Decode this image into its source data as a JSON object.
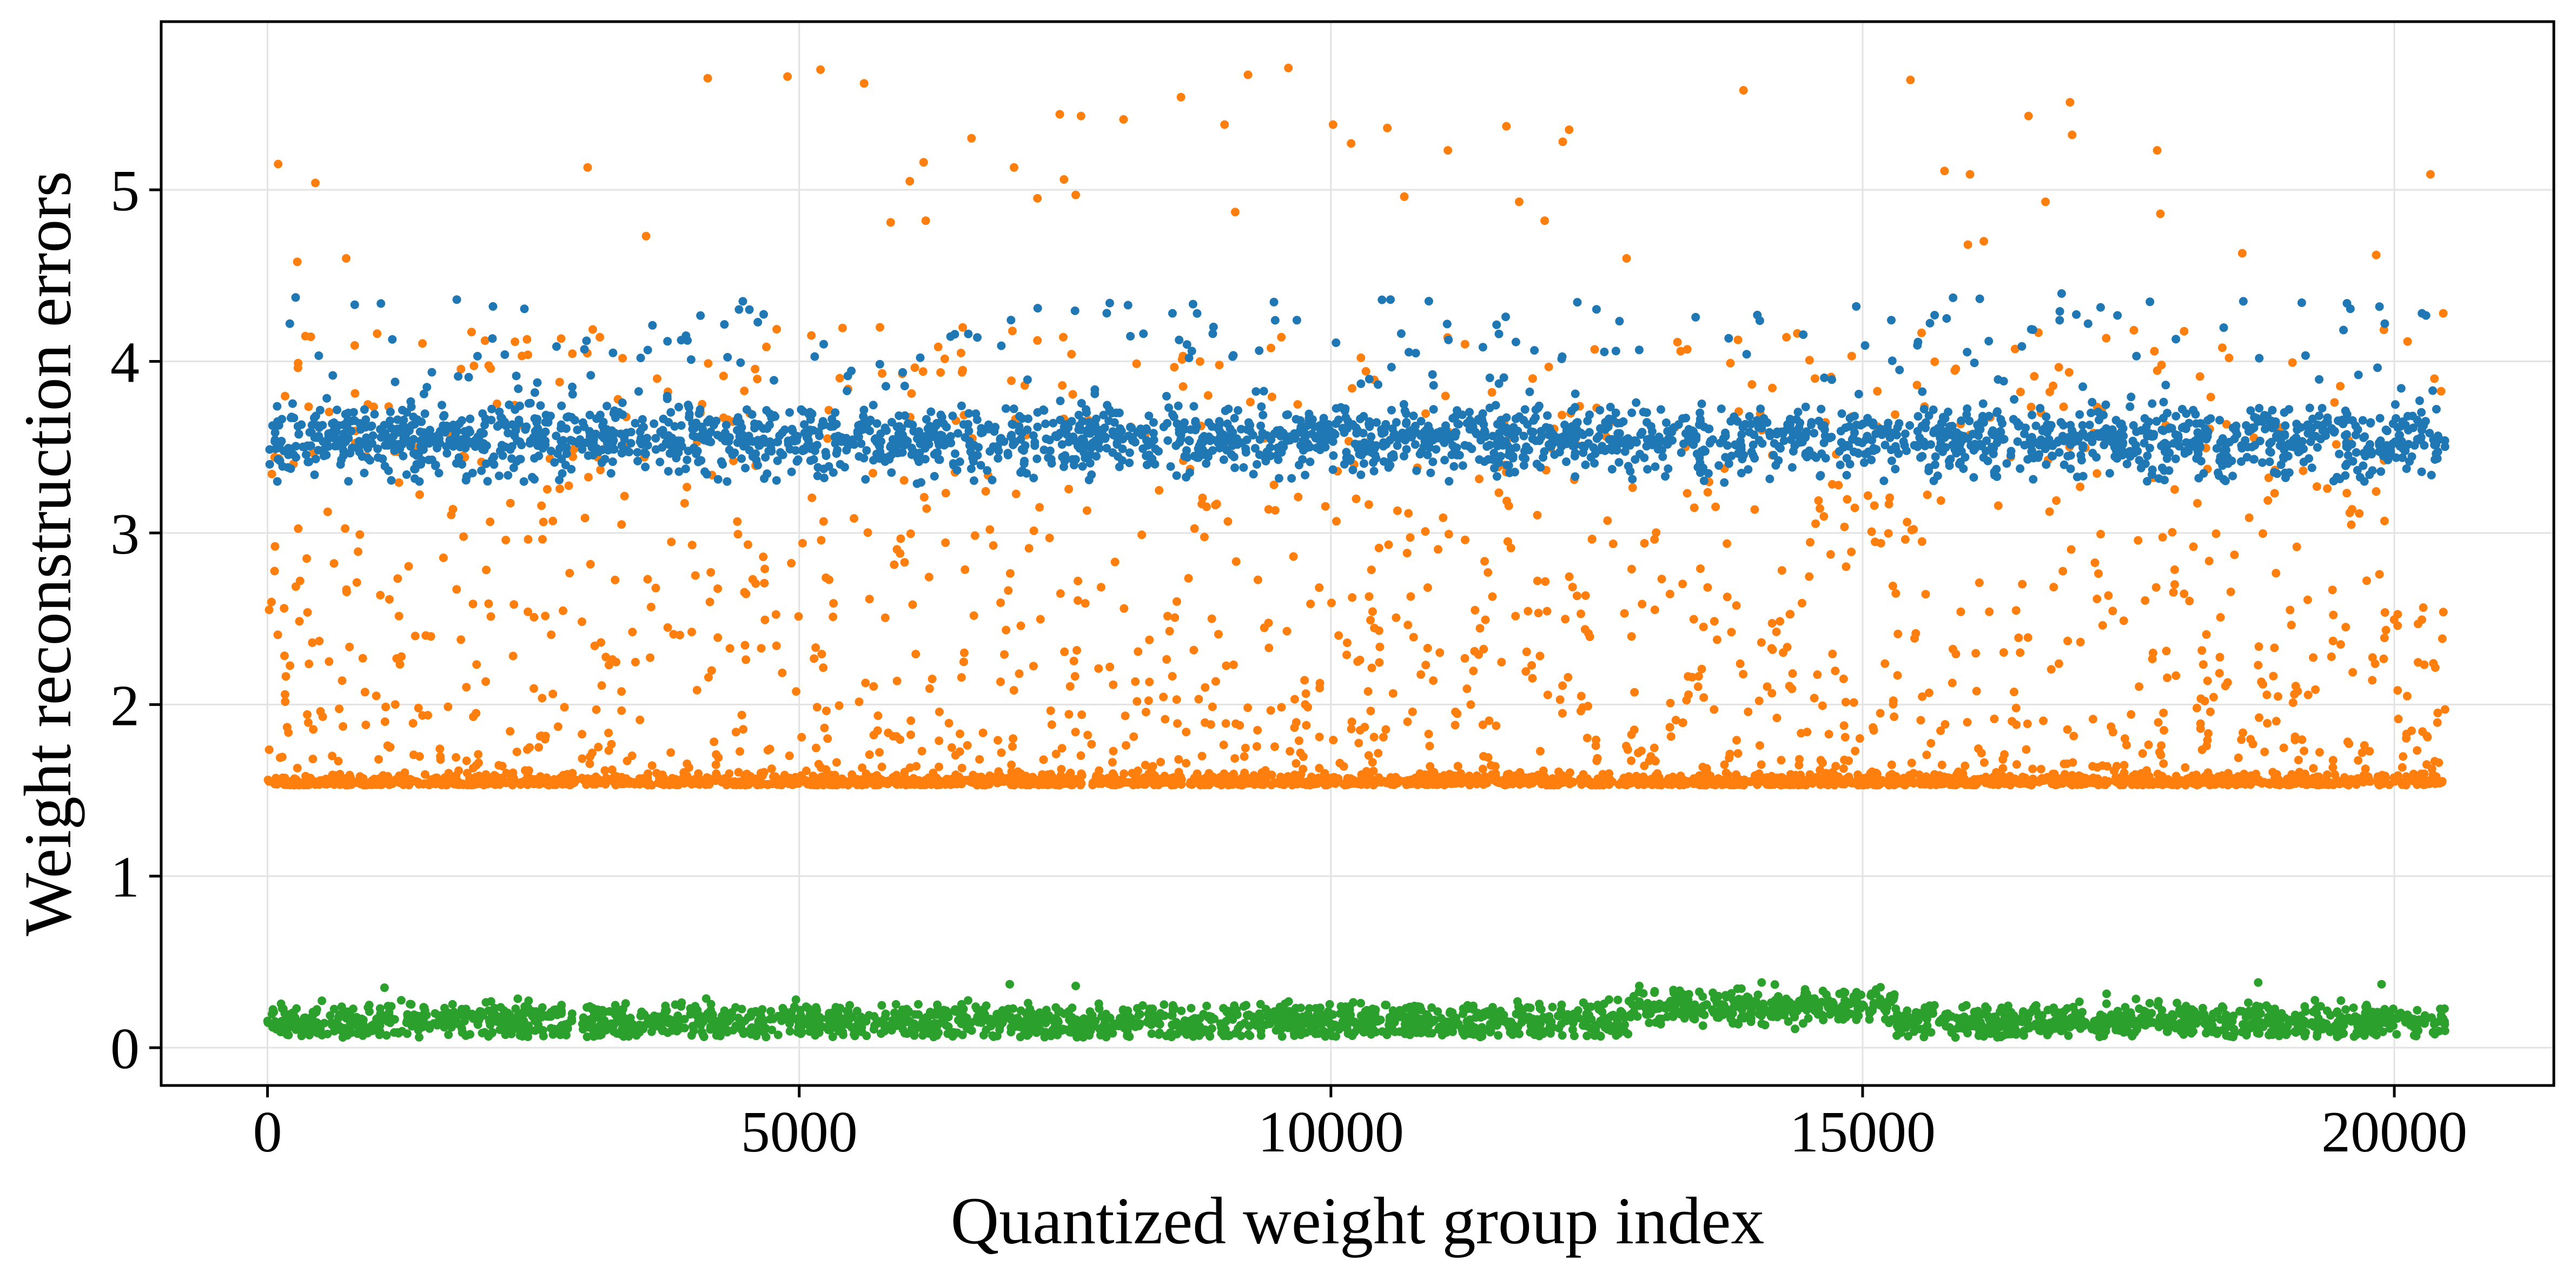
{
  "chart_data": {
    "type": "scatter",
    "title": "",
    "xlabel": "Quantized weight group index",
    "ylabel": "Weight reconstruction errors",
    "xlim": [
      -1000,
      21500
    ],
    "ylim": [
      -0.22,
      5.98
    ],
    "grid": true,
    "x_ticks": [
      {
        "value": 0,
        "label": "0"
      },
      {
        "value": 5000,
        "label": "5000"
      },
      {
        "value": 10000,
        "label": "10000"
      },
      {
        "value": 15000,
        "label": "15000"
      },
      {
        "value": 20000,
        "label": "20000"
      }
    ],
    "y_ticks": [
      {
        "value": 0,
        "label": "0"
      },
      {
        "value": 1,
        "label": "1"
      },
      {
        "value": 2,
        "label": "2"
      },
      {
        "value": 3,
        "label": "3"
      },
      {
        "value": 4,
        "label": "4"
      },
      {
        "value": 5,
        "label": "5"
      }
    ],
    "x_domain": [
      0,
      20479
    ],
    "marker_radius": 8,
    "series": [
      {
        "color": "#1f77b4",
        "band_center": 3.55,
        "band_spread": 0.09,
        "outlier_range": [
          3.3,
          4.4
        ],
        "outlier_fraction": 0.16,
        "count": 2600,
        "outliers": [
          [
            210,
            4.22
          ],
          [
            820,
            4.33
          ],
          [
            1780,
            4.36
          ],
          [
            2120,
            4.32
          ],
          [
            3000,
            4.12
          ],
          [
            3620,
            4.21
          ],
          [
            4470,
            4.35
          ],
          [
            5230,
            4.1
          ],
          [
            6590,
            4.16
          ],
          [
            7920,
            4.34
          ],
          [
            8510,
            4.28
          ],
          [
            9680,
            4.24
          ],
          [
            10560,
            4.36
          ],
          [
            11580,
            4.16
          ],
          [
            12680,
            4.06
          ],
          [
            14010,
            4.27
          ],
          [
            14940,
            4.32
          ],
          [
            15790,
            4.25
          ],
          [
            17120,
            4.22
          ],
          [
            18580,
            4.35
          ],
          [
            19910,
            4.22
          ],
          [
            20260,
            4.28
          ]
        ]
      },
      {
        "color": "#ff7f0e",
        "band_center": 1.53,
        "band_spread": 0.03,
        "upper_max": 4.2,
        "outlier_fraction": 0.45,
        "count": 3600,
        "outliers": [
          [
            100,
            5.15
          ],
          [
            450,
            5.04
          ],
          [
            280,
            4.58
          ],
          [
            740,
            4.6
          ],
          [
            3010,
            5.13
          ],
          [
            3560,
            4.73
          ],
          [
            4140,
            5.65
          ],
          [
            4890,
            5.66
          ],
          [
            5200,
            5.7
          ],
          [
            5610,
            5.62
          ],
          [
            6040,
            5.05
          ],
          [
            6170,
            5.16
          ],
          [
            5860,
            4.81
          ],
          [
            6190,
            4.82
          ],
          [
            6620,
            5.3
          ],
          [
            7020,
            5.13
          ],
          [
            7240,
            4.95
          ],
          [
            7450,
            5.44
          ],
          [
            7650,
            5.43
          ],
          [
            7490,
            5.06
          ],
          [
            7600,
            4.97
          ],
          [
            8050,
            5.41
          ],
          [
            8590,
            5.54
          ],
          [
            9220,
            5.67
          ],
          [
            9600,
            5.71
          ],
          [
            9100,
            4.87
          ],
          [
            9000,
            5.38
          ],
          [
            10020,
            5.38
          ],
          [
            10190,
            5.27
          ],
          [
            10530,
            5.36
          ],
          [
            10690,
            4.96
          ],
          [
            11100,
            5.23
          ],
          [
            11650,
            5.37
          ],
          [
            11770,
            4.93
          ],
          [
            12240,
            5.35
          ],
          [
            12180,
            5.28
          ],
          [
            12010,
            4.82
          ],
          [
            12780,
            4.6
          ],
          [
            13880,
            5.58
          ],
          [
            15450,
            5.64
          ],
          [
            15770,
            5.11
          ],
          [
            16010,
            5.09
          ],
          [
            16560,
            5.43
          ],
          [
            16720,
            4.93
          ],
          [
            16950,
            5.51
          ],
          [
            16970,
            5.32
          ],
          [
            17770,
            5.23
          ],
          [
            17800,
            4.86
          ],
          [
            18570,
            4.63
          ],
          [
            19830,
            4.62
          ],
          [
            20340,
            5.09
          ],
          [
            20460,
            4.28
          ],
          [
            16140,
            4.7
          ],
          [
            15990,
            4.68
          ]
        ]
      },
      {
        "color": "#2ca02c",
        "band_center": 0.15,
        "band_spread": 0.05,
        "count": 2600,
        "bump": {
          "start": 12800,
          "end": 15300,
          "add": 0.09
        },
        "outliers": [
          [
            6980,
            0.37
          ],
          [
            7600,
            0.36
          ],
          [
            18720,
            0.38
          ],
          [
            19880,
            0.37
          ],
          [
            14050,
            0.38
          ],
          [
            12900,
            0.36
          ],
          [
            1100,
            0.35
          ]
        ]
      }
    ]
  }
}
